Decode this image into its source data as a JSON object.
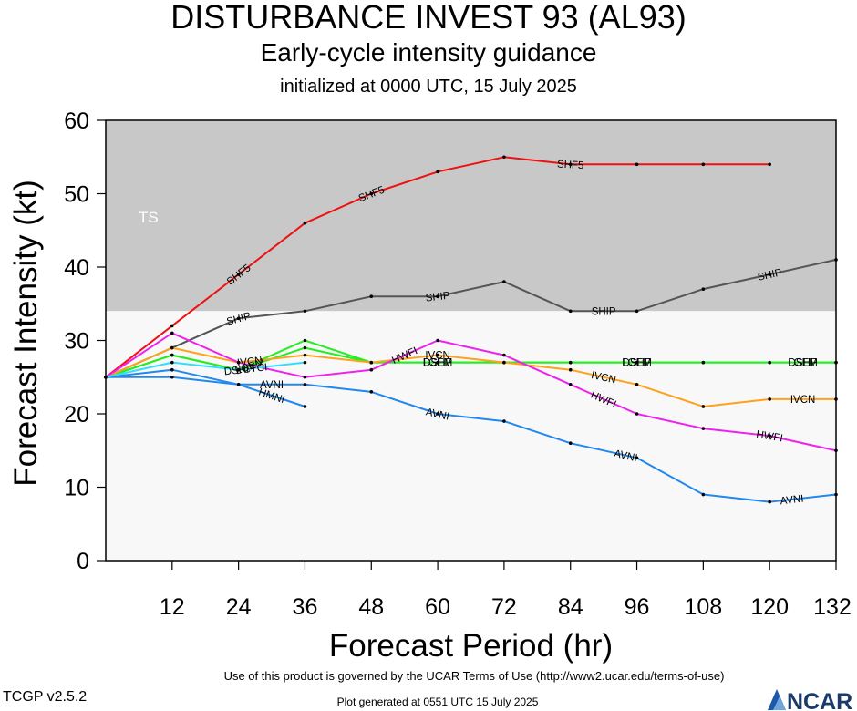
{
  "header": {
    "title": "DISTURBANCE INVEST 93 (AL93)",
    "subtitle": "Early-cycle intensity guidance",
    "init": "initialized at 0000 UTC, 15 July 2025"
  },
  "footer": {
    "terms": "Use of this product is governed by the UCAR Terms of Use (http://www2.ucar.edu/terms-of-use)",
    "version": "TCGP v2.5.2",
    "generated": "Plot generated at 0551 UTC   15 July 2025",
    "logo": "NCAR",
    "logo_icon": "ncar-logo-icon"
  },
  "chart_data": {
    "type": "line",
    "xlabel": "Forecast Period (hr)",
    "ylabel": "Forecast Intensity (kt)",
    "xlim": [
      0,
      132
    ],
    "ylim": [
      0,
      60
    ],
    "xticks": [
      12,
      24,
      36,
      48,
      60,
      72,
      84,
      96,
      108,
      120,
      132
    ],
    "yticks": [
      0,
      10,
      20,
      30,
      40,
      50,
      60
    ],
    "grid": false,
    "bands": [
      {
        "label": "TS",
        "from": 34,
        "to": 64,
        "color": "#c8c8c8"
      },
      {
        "label": "",
        "from": 0,
        "to": 34,
        "color": "#f8f8f8"
      }
    ],
    "series": [
      {
        "name": "SHF5",
        "color": "#ee1111",
        "points": [
          [
            0,
            25
          ],
          [
            12,
            32
          ],
          [
            24,
            39
          ],
          [
            36,
            46
          ],
          [
            48,
            50
          ],
          [
            60,
            53
          ],
          [
            72,
            55
          ],
          [
            84,
            54
          ],
          [
            96,
            54
          ],
          [
            108,
            54
          ],
          [
            120,
            54
          ]
        ],
        "labels": [
          24,
          48,
          84
        ]
      },
      {
        "name": "SHIP",
        "color": "#555555",
        "points": [
          [
            0,
            25
          ],
          [
            12,
            29
          ],
          [
            24,
            33
          ],
          [
            36,
            34
          ],
          [
            48,
            36
          ],
          [
            60,
            36
          ],
          [
            72,
            38
          ],
          [
            84,
            34
          ],
          [
            96,
            34
          ],
          [
            108,
            37
          ],
          [
            120,
            39
          ],
          [
            132,
            41
          ]
        ],
        "labels": [
          24,
          60,
          90,
          120
        ]
      },
      {
        "name": "DSHP",
        "color": "#22ee22",
        "points": [
          [
            0,
            25
          ],
          [
            12,
            28
          ],
          [
            24,
            26
          ],
          [
            36,
            30
          ],
          [
            48,
            27
          ],
          [
            60,
            27
          ],
          [
            72,
            27
          ],
          [
            84,
            27
          ],
          [
            96,
            27
          ],
          [
            108,
            27
          ],
          [
            120,
            27
          ],
          [
            132,
            27
          ]
        ],
        "labels": [
          24,
          60,
          96,
          126
        ]
      },
      {
        "name": "LGEM",
        "color": "#22ee22",
        "points": [
          [
            0,
            25
          ],
          [
            12,
            28
          ],
          [
            24,
            26
          ],
          [
            36,
            29
          ],
          [
            48,
            27
          ],
          [
            60,
            27
          ],
          [
            72,
            27
          ],
          [
            84,
            27
          ],
          [
            96,
            27
          ],
          [
            108,
            27
          ],
          [
            120,
            27
          ],
          [
            132,
            27
          ]
        ],
        "labels": [
          26,
          60,
          96,
          126
        ]
      },
      {
        "name": "IVCN",
        "color": "#ffa11a",
        "points": [
          [
            0,
            25
          ],
          [
            12,
            29
          ],
          [
            24,
            27
          ],
          [
            36,
            28
          ],
          [
            48,
            27
          ],
          [
            60,
            28
          ],
          [
            72,
            27
          ],
          [
            84,
            26
          ],
          [
            96,
            24
          ],
          [
            108,
            21
          ],
          [
            120,
            22
          ],
          [
            132,
            22
          ]
        ],
        "labels": [
          26,
          60,
          90,
          126
        ]
      },
      {
        "name": "HWFI",
        "color": "#ee22ee",
        "points": [
          [
            0,
            25
          ],
          [
            12,
            31
          ],
          [
            24,
            27
          ],
          [
            36,
            25
          ],
          [
            48,
            26
          ],
          [
            60,
            30
          ],
          [
            72,
            28
          ],
          [
            84,
            24
          ],
          [
            96,
            20
          ],
          [
            108,
            18
          ],
          [
            120,
            17
          ],
          [
            132,
            15
          ]
        ],
        "labels": [
          54,
          90,
          120
        ]
      },
      {
        "name": "AVNI",
        "color": "#2288ee",
        "points": [
          [
            0,
            25
          ],
          [
            12,
            26
          ],
          [
            24,
            24
          ],
          [
            36,
            24
          ],
          [
            48,
            23
          ],
          [
            60,
            20
          ],
          [
            72,
            19
          ],
          [
            84,
            16
          ],
          [
            96,
            14
          ],
          [
            108,
            9
          ],
          [
            120,
            8
          ],
          [
            132,
            9
          ]
        ],
        "labels": [
          30,
          60,
          94,
          124
        ]
      },
      {
        "name": "HMNI",
        "color": "#2288ee",
        "points": [
          [
            0,
            25
          ],
          [
            12,
            25
          ],
          [
            24,
            24
          ],
          [
            36,
            21
          ]
        ],
        "labels": [
          30
        ]
      },
      {
        "name": "CTCI",
        "color": "#33ddff",
        "points": [
          [
            0,
            25
          ],
          [
            12,
            27
          ],
          [
            24,
            26
          ],
          [
            36,
            27
          ]
        ],
        "labels": [
          27
        ]
      }
    ]
  }
}
